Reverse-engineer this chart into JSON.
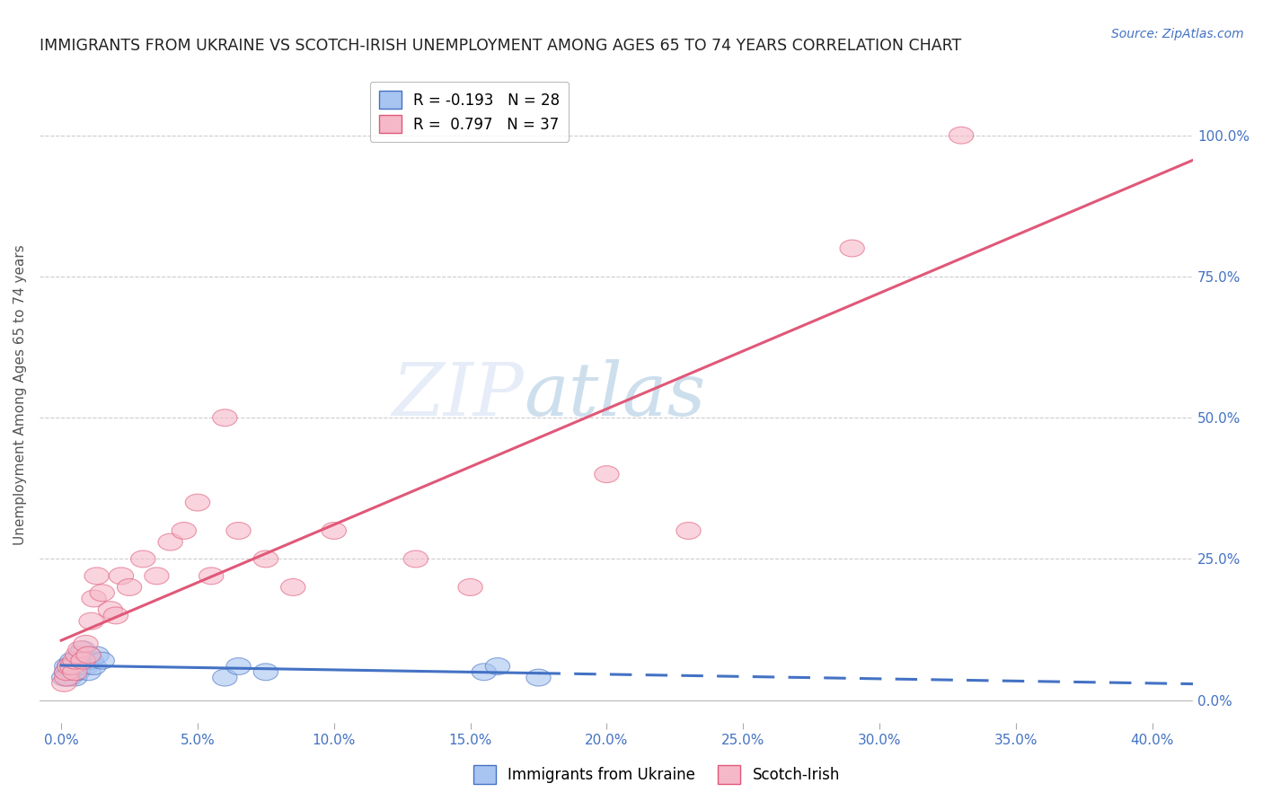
{
  "title": "IMMIGRANTS FROM UKRAINE VS SCOTCH-IRISH UNEMPLOYMENT AMONG AGES 65 TO 74 YEARS CORRELATION CHART",
  "source": "Source: ZipAtlas.com",
  "ylabel": "Unemployment Among Ages 65 to 74 years",
  "xlabel_ticks": [
    0.0,
    0.05,
    0.1,
    0.15,
    0.2,
    0.25,
    0.3,
    0.35,
    0.4
  ],
  "ylabel_right_ticks": [
    0.0,
    0.25,
    0.5,
    0.75,
    1.0
  ],
  "xlim": [
    -0.008,
    0.415
  ],
  "ylim": [
    -0.04,
    1.12
  ],
  "ukraine_color": "#A8C4F0",
  "scotch_color": "#F5B8C8",
  "ukraine_line_color": "#4472C4",
  "scotch_line_color": "#E05878",
  "ukraine_R": -0.193,
  "ukraine_N": 28,
  "scotch_R": 0.797,
  "scotch_N": 37,
  "ukraine_x": [
    0.001,
    0.002,
    0.002,
    0.003,
    0.003,
    0.004,
    0.004,
    0.005,
    0.005,
    0.006,
    0.006,
    0.007,
    0.007,
    0.008,
    0.008,
    0.009,
    0.01,
    0.01,
    0.011,
    0.012,
    0.013,
    0.015,
    0.06,
    0.065,
    0.075,
    0.155,
    0.16,
    0.175
  ],
  "ukraine_y": [
    0.04,
    0.05,
    0.06,
    0.04,
    0.06,
    0.05,
    0.07,
    0.04,
    0.06,
    0.05,
    0.07,
    0.06,
    0.08,
    0.07,
    0.09,
    0.06,
    0.05,
    0.08,
    0.07,
    0.06,
    0.08,
    0.07,
    0.04,
    0.06,
    0.05,
    0.05,
    0.06,
    0.04
  ],
  "scotch_x": [
    0.001,
    0.002,
    0.002,
    0.003,
    0.004,
    0.005,
    0.005,
    0.006,
    0.007,
    0.008,
    0.009,
    0.01,
    0.011,
    0.012,
    0.013,
    0.015,
    0.018,
    0.02,
    0.022,
    0.025,
    0.03,
    0.035,
    0.04,
    0.045,
    0.05,
    0.055,
    0.06,
    0.065,
    0.075,
    0.085,
    0.1,
    0.13,
    0.15,
    0.2,
    0.23,
    0.29,
    0.33
  ],
  "scotch_y": [
    0.03,
    0.04,
    0.05,
    0.06,
    0.06,
    0.05,
    0.07,
    0.08,
    0.09,
    0.07,
    0.1,
    0.08,
    0.14,
    0.18,
    0.22,
    0.19,
    0.16,
    0.15,
    0.22,
    0.2,
    0.25,
    0.22,
    0.28,
    0.3,
    0.35,
    0.22,
    0.5,
    0.3,
    0.25,
    0.2,
    0.3,
    0.25,
    0.2,
    0.4,
    0.3,
    0.8,
    1.0
  ],
  "watermark_zip": "ZIP",
  "watermark_atlas": "atlas",
  "background_color": "#FFFFFF",
  "grid_color": "#CCCCCC",
  "axis_label_color": "#4472C4",
  "title_color": "#222222"
}
